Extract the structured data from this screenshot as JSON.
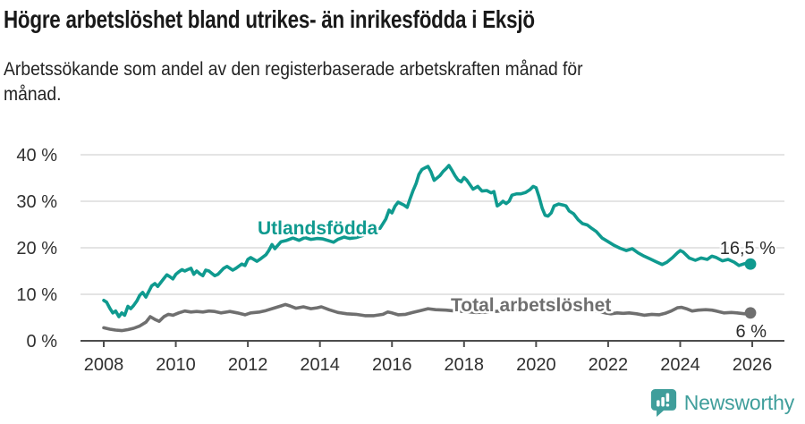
{
  "header": {
    "title": "Högre arbetslöshet bland utrikes- än inrikesfödda i Eksjö",
    "subtitle_lines": [
      "Arbetssökande som andel av den registerbaserade arbetskraften månad för",
      "månad."
    ]
  },
  "chart_data": {
    "type": "line",
    "title": "Högre arbetslöshet bland utrikes- än inrikesfödda i Eksjö",
    "subtitle": "Arbetssökande som andel av den registerbaserade arbetskraften månad för månad.",
    "grid": "horizontal",
    "legend": "inline-labels",
    "x_axis": {
      "tick_values": [
        2008,
        2010,
        2012,
        2014,
        2016,
        2018,
        2020,
        2022,
        2024,
        2026
      ],
      "tick_labels": [
        "2008",
        "2010",
        "2012",
        "2014",
        "2016",
        "2018",
        "2020",
        "2022",
        "2024",
        "2026"
      ],
      "range": [
        2007.4,
        2026.9
      ]
    },
    "y_axis": {
      "tick_values": [
        0,
        10,
        20,
        30,
        40
      ],
      "tick_labels": [
        "0 %",
        "10 %",
        "20 %",
        "30 %",
        "40 %"
      ],
      "range": [
        0,
        40
      ],
      "unit": "%"
    },
    "series": [
      {
        "name": "Utlandsfödda",
        "color": "#0f9a8f",
        "end_label": "16,5 %",
        "end_value": 16.5,
        "points": [
          [
            2008.0,
            8.7
          ],
          [
            2008.08,
            8.3
          ],
          [
            2008.17,
            7.0
          ],
          [
            2008.25,
            6.0
          ],
          [
            2008.33,
            6.4
          ],
          [
            2008.42,
            5.2
          ],
          [
            2008.5,
            6.0
          ],
          [
            2008.58,
            5.5
          ],
          [
            2008.67,
            7.4
          ],
          [
            2008.75,
            6.9
          ],
          [
            2008.83,
            7.6
          ],
          [
            2008.92,
            8.6
          ],
          [
            2009.0,
            9.8
          ],
          [
            2009.08,
            10.4
          ],
          [
            2009.17,
            9.4
          ],
          [
            2009.25,
            10.6
          ],
          [
            2009.33,
            11.8
          ],
          [
            2009.42,
            12.3
          ],
          [
            2009.5,
            11.7
          ],
          [
            2009.58,
            12.5
          ],
          [
            2009.67,
            13.4
          ],
          [
            2009.75,
            14.2
          ],
          [
            2009.83,
            13.8
          ],
          [
            2009.92,
            13.3
          ],
          [
            2010.0,
            14.3
          ],
          [
            2010.08,
            14.8
          ],
          [
            2010.17,
            15.3
          ],
          [
            2010.25,
            15.0
          ],
          [
            2010.33,
            15.3
          ],
          [
            2010.42,
            15.6
          ],
          [
            2010.5,
            14.3
          ],
          [
            2010.58,
            15.0
          ],
          [
            2010.67,
            14.4
          ],
          [
            2010.75,
            14.0
          ],
          [
            2010.83,
            15.2
          ],
          [
            2010.92,
            15.0
          ],
          [
            2011.0,
            14.5
          ],
          [
            2011.08,
            14.0
          ],
          [
            2011.17,
            14.3
          ],
          [
            2011.33,
            15.6
          ],
          [
            2011.42,
            16.0
          ],
          [
            2011.58,
            15.2
          ],
          [
            2011.67,
            15.6
          ],
          [
            2011.83,
            16.5
          ],
          [
            2011.92,
            16.2
          ],
          [
            2012.0,
            17.5
          ],
          [
            2012.08,
            17.9
          ],
          [
            2012.25,
            17.1
          ],
          [
            2012.33,
            17.5
          ],
          [
            2012.5,
            18.5
          ],
          [
            2012.58,
            19.4
          ],
          [
            2012.67,
            20.7
          ],
          [
            2012.75,
            19.8
          ],
          [
            2012.92,
            21.3
          ],
          [
            2013.08,
            21.6
          ],
          [
            2013.25,
            22.1
          ],
          [
            2013.42,
            21.6
          ],
          [
            2013.58,
            22.2
          ],
          [
            2013.75,
            21.8
          ],
          [
            2013.92,
            22.0
          ],
          [
            2014.08,
            21.9
          ],
          [
            2014.25,
            21.5
          ],
          [
            2014.38,
            21.2
          ],
          [
            2014.5,
            21.8
          ],
          [
            2014.67,
            22.3
          ],
          [
            2014.83,
            22.0
          ],
          [
            2015.0,
            22.2
          ],
          [
            2015.17,
            22.6
          ],
          [
            2015.33,
            23.0
          ],
          [
            2015.5,
            23.4
          ],
          [
            2015.67,
            24.2
          ],
          [
            2015.83,
            26.2
          ],
          [
            2015.92,
            28.1
          ],
          [
            2016.0,
            27.5
          ],
          [
            2016.08,
            28.9
          ],
          [
            2016.17,
            29.8
          ],
          [
            2016.25,
            29.5
          ],
          [
            2016.33,
            29.2
          ],
          [
            2016.42,
            28.7
          ],
          [
            2016.5,
            30.5
          ],
          [
            2016.58,
            32.2
          ],
          [
            2016.67,
            33.8
          ],
          [
            2016.75,
            35.8
          ],
          [
            2016.83,
            36.8
          ],
          [
            2016.92,
            37.2
          ],
          [
            2017.0,
            37.5
          ],
          [
            2017.08,
            36.4
          ],
          [
            2017.17,
            34.5
          ],
          [
            2017.33,
            35.5
          ],
          [
            2017.42,
            36.4
          ],
          [
            2017.5,
            37.0
          ],
          [
            2017.58,
            37.7
          ],
          [
            2017.67,
            36.6
          ],
          [
            2017.75,
            35.5
          ],
          [
            2017.83,
            34.6
          ],
          [
            2017.92,
            34.2
          ],
          [
            2018.0,
            35.1
          ],
          [
            2018.08,
            34.5
          ],
          [
            2018.25,
            32.6
          ],
          [
            2018.38,
            33.2
          ],
          [
            2018.5,
            32.2
          ],
          [
            2018.63,
            32.3
          ],
          [
            2018.75,
            31.8
          ],
          [
            2018.83,
            32.1
          ],
          [
            2018.92,
            29.0
          ],
          [
            2019.0,
            29.4
          ],
          [
            2019.08,
            30.0
          ],
          [
            2019.17,
            29.5
          ],
          [
            2019.25,
            30.0
          ],
          [
            2019.33,
            31.3
          ],
          [
            2019.46,
            31.6
          ],
          [
            2019.58,
            31.6
          ],
          [
            2019.71,
            31.9
          ],
          [
            2019.83,
            32.5
          ],
          [
            2019.92,
            33.2
          ],
          [
            2020.0,
            32.9
          ],
          [
            2020.08,
            31.0
          ],
          [
            2020.17,
            28.5
          ],
          [
            2020.25,
            27.0
          ],
          [
            2020.33,
            26.8
          ],
          [
            2020.42,
            27.5
          ],
          [
            2020.5,
            29.0
          ],
          [
            2020.63,
            29.4
          ],
          [
            2020.75,
            29.2
          ],
          [
            2020.83,
            29.0
          ],
          [
            2020.92,
            27.9
          ],
          [
            2021.04,
            27.3
          ],
          [
            2021.17,
            26.0
          ],
          [
            2021.29,
            25.2
          ],
          [
            2021.42,
            24.9
          ],
          [
            2021.54,
            24.2
          ],
          [
            2021.67,
            23.5
          ],
          [
            2021.83,
            22.1
          ],
          [
            2022.0,
            21.3
          ],
          [
            2022.17,
            20.5
          ],
          [
            2022.33,
            19.9
          ],
          [
            2022.5,
            19.4
          ],
          [
            2022.67,
            19.8
          ],
          [
            2022.83,
            18.9
          ],
          [
            2023.0,
            18.2
          ],
          [
            2023.17,
            17.6
          ],
          [
            2023.33,
            17.0
          ],
          [
            2023.5,
            16.4
          ],
          [
            2023.63,
            16.9
          ],
          [
            2023.79,
            17.9
          ],
          [
            2023.92,
            18.9
          ],
          [
            2024.0,
            19.4
          ],
          [
            2024.08,
            19.1
          ],
          [
            2024.25,
            17.8
          ],
          [
            2024.42,
            17.3
          ],
          [
            2024.58,
            17.8
          ],
          [
            2024.75,
            17.5
          ],
          [
            2024.88,
            18.2
          ],
          [
            2025.0,
            17.9
          ],
          [
            2025.17,
            17.2
          ],
          [
            2025.33,
            17.5
          ],
          [
            2025.5,
            16.9
          ],
          [
            2025.63,
            16.2
          ],
          [
            2025.79,
            16.6
          ],
          [
            2025.95,
            16.5
          ]
        ]
      },
      {
        "name": "Total arbetslöshet",
        "color": "#6f6f6f",
        "end_label": "6 %",
        "end_value": 6,
        "points": [
          [
            2008.0,
            2.8
          ],
          [
            2008.17,
            2.5
          ],
          [
            2008.33,
            2.3
          ],
          [
            2008.5,
            2.2
          ],
          [
            2008.67,
            2.4
          ],
          [
            2008.83,
            2.7
          ],
          [
            2009.0,
            3.2
          ],
          [
            2009.17,
            4.0
          ],
          [
            2009.29,
            5.2
          ],
          [
            2009.42,
            4.6
          ],
          [
            2009.54,
            4.2
          ],
          [
            2009.67,
            5.2
          ],
          [
            2009.79,
            5.7
          ],
          [
            2009.92,
            5.5
          ],
          [
            2010.08,
            6.0
          ],
          [
            2010.25,
            6.4
          ],
          [
            2010.42,
            6.2
          ],
          [
            2010.58,
            6.3
          ],
          [
            2010.75,
            6.2
          ],
          [
            2010.92,
            6.4
          ],
          [
            2011.08,
            6.3
          ],
          [
            2011.25,
            6.0
          ],
          [
            2011.5,
            6.3
          ],
          [
            2011.71,
            6.0
          ],
          [
            2011.92,
            5.6
          ],
          [
            2012.08,
            6.0
          ],
          [
            2012.33,
            6.2
          ],
          [
            2012.5,
            6.5
          ],
          [
            2012.75,
            7.1
          ],
          [
            2012.92,
            7.5
          ],
          [
            2013.04,
            7.8
          ],
          [
            2013.17,
            7.5
          ],
          [
            2013.33,
            7.0
          ],
          [
            2013.54,
            7.3
          ],
          [
            2013.75,
            6.9
          ],
          [
            2013.92,
            7.1
          ],
          [
            2014.04,
            7.3
          ],
          [
            2014.25,
            6.7
          ],
          [
            2014.5,
            6.1
          ],
          [
            2014.75,
            5.8
          ],
          [
            2015.0,
            5.7
          ],
          [
            2015.25,
            5.4
          ],
          [
            2015.5,
            5.4
          ],
          [
            2015.75,
            5.7
          ],
          [
            2015.88,
            6.2
          ],
          [
            2016.0,
            6.0
          ],
          [
            2016.17,
            5.6
          ],
          [
            2016.38,
            5.7
          ],
          [
            2016.58,
            6.1
          ],
          [
            2016.79,
            6.5
          ],
          [
            2017.0,
            6.9
          ],
          [
            2017.21,
            6.7
          ],
          [
            2017.5,
            6.6
          ],
          [
            2017.75,
            6.4
          ],
          [
            2018.0,
            6.3
          ],
          [
            2018.33,
            6.1
          ],
          [
            2018.67,
            6.2
          ],
          [
            2019.0,
            6.4
          ],
          [
            2019.33,
            6.5
          ],
          [
            2019.67,
            6.7
          ],
          [
            2019.92,
            7.2
          ],
          [
            2020.17,
            8.0
          ],
          [
            2020.42,
            8.6
          ],
          [
            2020.67,
            8.4
          ],
          [
            2020.92,
            8.0
          ],
          [
            2021.17,
            7.5
          ],
          [
            2021.42,
            6.9
          ],
          [
            2021.67,
            6.4
          ],
          [
            2021.92,
            6.0
          ],
          [
            2022.08,
            5.8
          ],
          [
            2022.25,
            6.0
          ],
          [
            2022.42,
            5.9
          ],
          [
            2022.58,
            6.0
          ],
          [
            2022.79,
            5.8
          ],
          [
            2023.0,
            5.5
          ],
          [
            2023.21,
            5.7
          ],
          [
            2023.42,
            5.6
          ],
          [
            2023.58,
            5.9
          ],
          [
            2023.75,
            6.4
          ],
          [
            2023.92,
            7.1
          ],
          [
            2024.04,
            7.2
          ],
          [
            2024.17,
            6.9
          ],
          [
            2024.33,
            6.4
          ],
          [
            2024.5,
            6.6
          ],
          [
            2024.71,
            6.7
          ],
          [
            2024.88,
            6.6
          ],
          [
            2025.0,
            6.4
          ],
          [
            2025.21,
            6.0
          ],
          [
            2025.42,
            6.1
          ],
          [
            2025.58,
            6.0
          ],
          [
            2025.79,
            5.8
          ],
          [
            2025.95,
            6.0
          ]
        ]
      }
    ]
  },
  "footer": {
    "brand": "Newsworthy",
    "brand_color": "#3f9e9b",
    "logo_icon": "newsworthy-badge-barchart-icon"
  }
}
